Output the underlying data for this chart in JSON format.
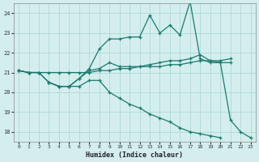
{
  "x": [
    0,
    1,
    2,
    3,
    4,
    5,
    6,
    7,
    8,
    9,
    10,
    11,
    12,
    13,
    14,
    15,
    16,
    17,
    18,
    19,
    20,
    21,
    22,
    23
  ],
  "line_flat": [
    21.1,
    21.0,
    21.0,
    21.0,
    21.0,
    21.0,
    21.0,
    21.0,
    21.1,
    21.1,
    21.2,
    21.2,
    21.3,
    21.3,
    21.3,
    21.4,
    21.4,
    21.5,
    21.6,
    21.6,
    21.5,
    21.5,
    null,
    null
  ],
  "line_mid": [
    21.1,
    21.0,
    21.0,
    20.5,
    20.3,
    20.3,
    20.7,
    21.1,
    21.2,
    21.5,
    21.3,
    21.3,
    21.3,
    21.4,
    21.5,
    21.6,
    21.6,
    21.7,
    21.9,
    21.6,
    21.6,
    21.7,
    null,
    null
  ],
  "line_high": [
    21.1,
    21.0,
    null,
    20.5,
    20.3,
    20.3,
    20.7,
    21.2,
    22.2,
    22.7,
    22.7,
    22.8,
    22.8,
    23.9,
    23.0,
    23.4,
    22.9,
    24.6,
    21.7,
    21.5,
    21.5,
    18.6,
    18.0,
    17.7
  ],
  "line_low": [
    21.1,
    21.0,
    21.0,
    20.5,
    20.3,
    20.3,
    20.3,
    20.6,
    20.6,
    20.0,
    19.7,
    19.4,
    19.2,
    18.9,
    18.7,
    18.5,
    18.2,
    18.0,
    17.9,
    17.8,
    17.7,
    null,
    null,
    null
  ],
  "bg_color": "#d4eeee",
  "grid_color": "#aed8d8",
  "line_color": "#1a7a6e",
  "xlabel": "Humidex (Indice chaleur)",
  "ylim": [
    17.5,
    24.5
  ],
  "xlim": [
    -0.5,
    23.5
  ],
  "yticks": [
    18,
    19,
    20,
    21,
    22,
    23,
    24
  ],
  "xticks": [
    0,
    1,
    2,
    3,
    4,
    5,
    6,
    7,
    8,
    9,
    10,
    11,
    12,
    13,
    14,
    15,
    16,
    17,
    18,
    19,
    20,
    21,
    22,
    23
  ]
}
